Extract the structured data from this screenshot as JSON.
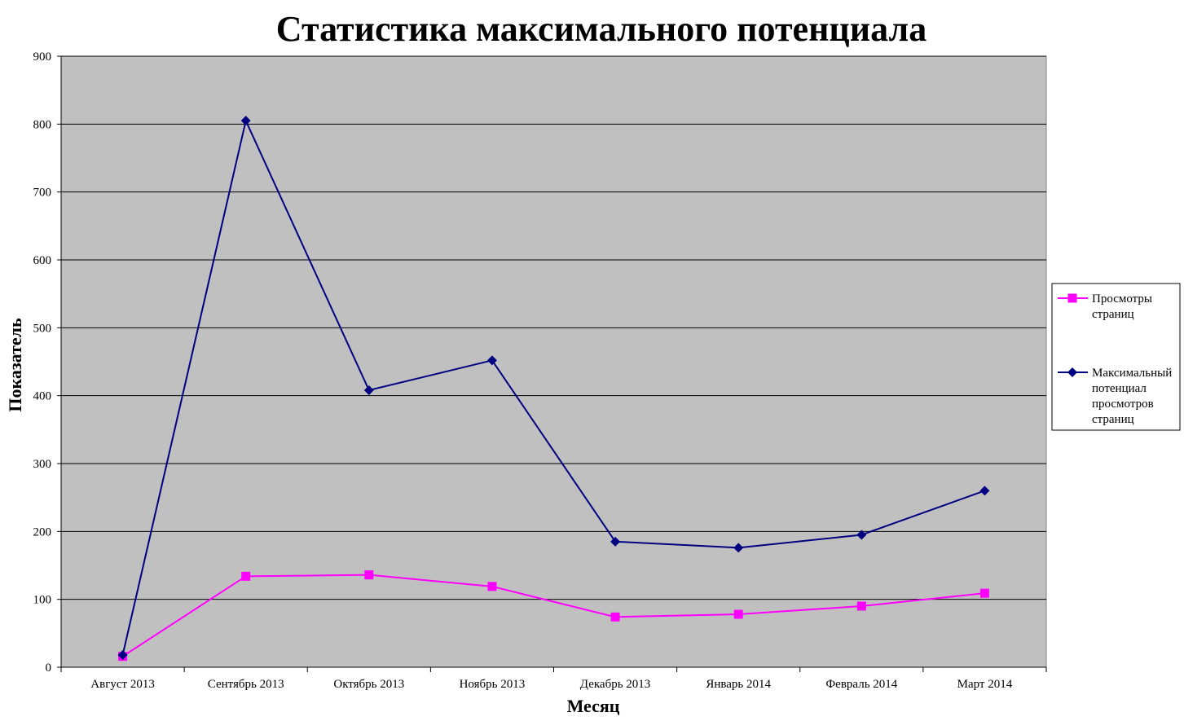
{
  "chart_data": {
    "type": "line",
    "title": "Статистика максимального потенциала",
    "xlabel": "Месяц",
    "ylabel": "Показатель",
    "categories": [
      "Август 2013",
      "Сентябрь 2013",
      "Октябрь 2013",
      "Ноябрь 2013",
      "Декабрь 2013",
      "Январь 2014",
      "Февраль 2014",
      "Март 2014"
    ],
    "ylim": [
      0,
      900
    ],
    "yticks": [
      0,
      100,
      200,
      300,
      400,
      500,
      600,
      700,
      800,
      900
    ],
    "grid": true,
    "legend_position": "right",
    "series": [
      {
        "name": "Просмотры страниц",
        "legend_lines": [
          "Просмотры",
          "страниц"
        ],
        "color": "#FF00FF",
        "marker": "square",
        "values": [
          16,
          134,
          136,
          119,
          74,
          78,
          90,
          109
        ]
      },
      {
        "name": "Максимальный потенциал просмотров страниц",
        "legend_lines": [
          "Максимальный",
          "потенциал",
          "просмотров",
          "страниц"
        ],
        "color": "#000080",
        "marker": "diamond",
        "values": [
          18,
          805,
          408,
          452,
          185,
          176,
          195,
          260
        ]
      }
    ],
    "plot_background": "#C0C0C0"
  }
}
